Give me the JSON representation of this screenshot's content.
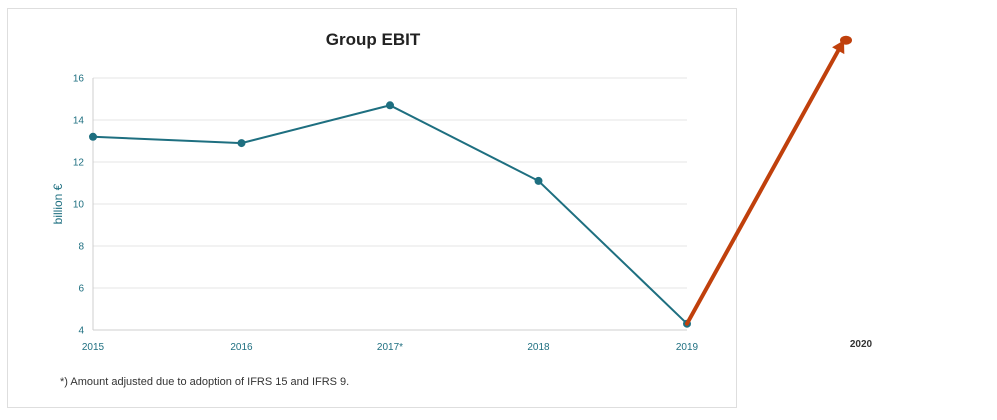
{
  "chart_data": {
    "type": "line",
    "title": "Group EBIT",
    "ylabel": "billion €",
    "xlabel": "",
    "categories": [
      "2015",
      "2016",
      "2017*",
      "2018",
      "2019"
    ],
    "series": [
      {
        "values": [
          13.2,
          12.9,
          14.7,
          11.1,
          4.3
        ],
        "color": "#1e6f80"
      }
    ],
    "ylim": [
      4,
      16
    ],
    "yticks": [
      4,
      6,
      8,
      10,
      12,
      14,
      16
    ],
    "grid": true,
    "footnote": "*) Amount adjusted due to adoption of IFRS 15 and IFRS 9.",
    "annotation": {
      "type": "arrow",
      "from_category": "2019",
      "from_value": 4.3,
      "to_label": "2020",
      "to_value": 17.8,
      "color": "#c0400c"
    }
  }
}
